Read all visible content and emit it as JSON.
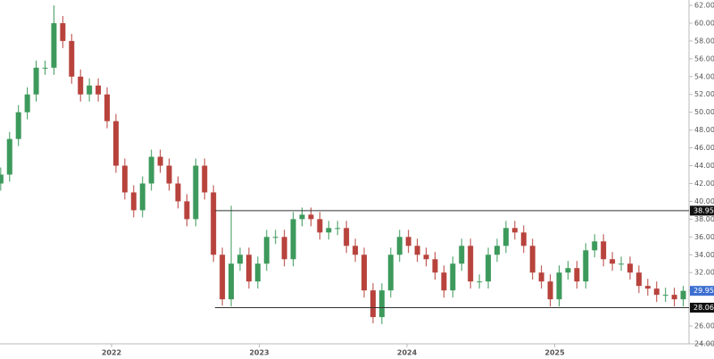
{
  "chart_data": {
    "type": "candlestick",
    "x": [
      2021.25,
      2021.31,
      2021.37,
      2021.43,
      2021.49,
      2021.55,
      2021.61,
      2021.67,
      2021.73,
      2021.79,
      2021.85,
      2021.91,
      2021.97,
      2022.03,
      2022.09,
      2022.15,
      2022.21,
      2022.27,
      2022.33,
      2022.39,
      2022.45,
      2022.51,
      2022.57,
      2022.63,
      2022.69,
      2022.75,
      2022.81,
      2022.87,
      2022.93,
      2022.99,
      2023.05,
      2023.11,
      2023.17,
      2023.23,
      2023.29,
      2023.35,
      2023.41,
      2023.47,
      2023.53,
      2023.59,
      2023.65,
      2023.71,
      2023.77,
      2023.83,
      2023.89,
      2023.95,
      2024.01,
      2024.07,
      2024.13,
      2024.19,
      2024.25,
      2024.31,
      2024.37,
      2024.43,
      2024.49,
      2024.55,
      2024.61,
      2024.67,
      2024.73,
      2024.79,
      2024.85,
      2024.91,
      2024.97,
      2025.03,
      2025.09,
      2025.15,
      2025.21,
      2025.27,
      2025.33,
      2025.39,
      2025.45,
      2025.51,
      2025.57,
      2025.63,
      2025.69,
      2025.75,
      2025.81,
      2025.87
    ],
    "open": [
      42,
      43,
      47,
      50,
      52,
      55,
      55,
      60,
      58,
      54,
      52,
      53,
      52,
      49,
      44,
      41,
      39,
      42,
      45,
      44,
      42,
      40,
      38,
      44,
      41,
      34,
      29,
      33,
      34,
      31,
      33,
      36,
      36,
      33.5,
      38,
      38.5,
      38,
      36.5,
      37,
      37,
      35,
      34,
      30,
      27,
      30,
      34,
      36,
      35,
      34,
      33.5,
      32,
      30,
      33,
      35,
      31,
      31,
      34,
      35,
      37,
      36.5,
      35,
      32,
      31,
      29,
      32,
      32.5,
      31,
      34.5,
      35.5,
      33.5,
      33,
      33,
      32,
      30.5,
      30.2,
      29.5,
      29.5,
      29
    ],
    "high": [
      43.8,
      47.8,
      50.8,
      52.8,
      55.8,
      55.8,
      62,
      60.8,
      58.8,
      54.8,
      53.8,
      53.8,
      52.8,
      49.8,
      44.8,
      41.8,
      42.8,
      45.8,
      45.8,
      44.8,
      42.8,
      40.8,
      44.8,
      44.8,
      41.8,
      34.8,
      39.5,
      34.8,
      34.8,
      33.8,
      36.8,
      36.8,
      36.8,
      38.8,
      39.3,
      39.3,
      38.8,
      37.8,
      37.8,
      37.8,
      35.8,
      34.8,
      30.8,
      30.8,
      34.8,
      36.8,
      36.8,
      35.8,
      34.8,
      34.3,
      32.8,
      33.8,
      35.8,
      35.8,
      31.8,
      34.8,
      35.8,
      37.8,
      37.8,
      37.3,
      35.8,
      32.8,
      31.8,
      32.8,
      33.3,
      33.3,
      35.3,
      36.3,
      36.3,
      34.3,
      33.8,
      33.8,
      32.8,
      31.3,
      31,
      30.3,
      30.3,
      30.5
    ],
    "low": [
      41.2,
      42.2,
      46.2,
      49.2,
      51.2,
      54.2,
      54.2,
      57.2,
      53.2,
      51.2,
      51.2,
      51.2,
      48.2,
      43.2,
      40.2,
      38.2,
      38.2,
      41.2,
      43.2,
      41.2,
      39.2,
      37.2,
      37.2,
      40.2,
      33.2,
      28.3,
      28.2,
      32.2,
      30.2,
      30.2,
      32.2,
      35.2,
      32.7,
      32.7,
      37.2,
      37.2,
      35.7,
      35.7,
      36.2,
      34.2,
      33.2,
      29.2,
      26.3,
      26.2,
      29.2,
      33.2,
      34.2,
      33.2,
      32.7,
      31.2,
      29.2,
      29.2,
      32.2,
      30.2,
      30.2,
      30.2,
      33.2,
      34.2,
      35.7,
      34.2,
      31.2,
      30.2,
      28.2,
      28.2,
      31.2,
      30.2,
      30.2,
      33.7,
      32.7,
      32.2,
      32.2,
      31.2,
      29.7,
      29.4,
      28.7,
      28.7,
      28.2,
      28.2
    ],
    "close": [
      43,
      47,
      50,
      52,
      55,
      55,
      60,
      58,
      54,
      52,
      53,
      52,
      49,
      44,
      41,
      39,
      42,
      45,
      44,
      42,
      40,
      38,
      44,
      41,
      34,
      29,
      33,
      34,
      31,
      33,
      36,
      36,
      33.5,
      38,
      38.5,
      38,
      36.5,
      37,
      37,
      35,
      34,
      30,
      27,
      30,
      34,
      36,
      35,
      34,
      33.5,
      32,
      30,
      33,
      35,
      31,
      31,
      34,
      35,
      37,
      36.5,
      35,
      32,
      31,
      29,
      32,
      32.5,
      31,
      34.5,
      35.5,
      33.5,
      33,
      33,
      32,
      30.5,
      30.2,
      29.5,
      29.5,
      29,
      29.95
    ],
    "up_color": "#3d9a5c",
    "down_color": "#b8433d",
    "xlim": [
      2021.245,
      2025.909
    ],
    "xticks": [
      2022,
      2023,
      2024,
      2025
    ],
    "ylim": [
      24,
      62
    ],
    "yticks": [
      {
        "value": 24,
        "label": "24.00"
      },
      {
        "value": 26,
        "label": "26.00"
      },
      {
        "value": 28,
        "label": "28.00"
      },
      {
        "value": 30,
        "label": "30.00"
      },
      {
        "value": 32,
        "label": "32.00"
      },
      {
        "value": 34,
        "label": "34.00"
      },
      {
        "value": 36,
        "label": "36.00"
      },
      {
        "value": 38,
        "label": "38.00"
      },
      {
        "value": 40,
        "label": "40.00"
      },
      {
        "value": 42,
        "label": "42.00"
      },
      {
        "value": 44,
        "label": "44.00"
      },
      {
        "value": 46,
        "label": "46.00"
      },
      {
        "value": 48,
        "label": "48.00"
      },
      {
        "value": 50,
        "label": "50.00"
      },
      {
        "value": 52,
        "label": "52.00"
      },
      {
        "value": 54,
        "label": "54.00"
      },
      {
        "value": 56,
        "label": "56.00"
      },
      {
        "value": 58,
        "label": "58.00"
      },
      {
        "value": 60,
        "label": "60.00"
      },
      {
        "value": 62,
        "label": "62.00"
      }
    ],
    "levels": [
      {
        "value": 38.95,
        "label": "38.95",
        "start": 2022.7
      },
      {
        "value": 28.06,
        "label": "28.06",
        "start": 2022.7
      }
    ],
    "last_price": {
      "value": 29.95,
      "label": "29.95",
      "color": "#3d6fd1"
    }
  }
}
